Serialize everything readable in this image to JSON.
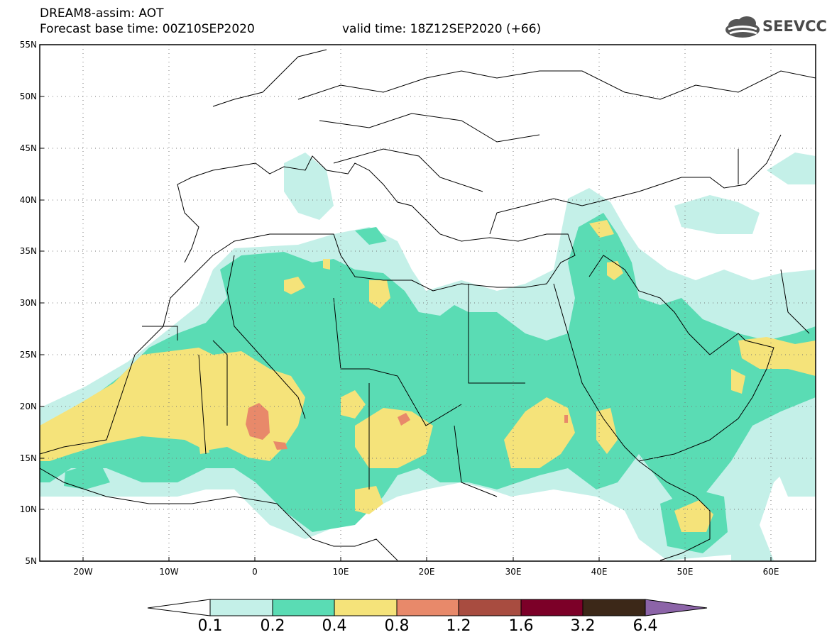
{
  "header": {
    "line1": "DREAM8-assim: AOT",
    "line2": "Forecast base time: 00Z10SEP2020",
    "line3": "valid time: 18Z12SEP2020 (+66)",
    "logo_text": "SEEVCCC"
  },
  "map": {
    "lat_labels": [
      "55N",
      "50N",
      "45N",
      "40N",
      "35N",
      "30N",
      "25N",
      "20N",
      "15N",
      "10N",
      "5N"
    ],
    "lon_labels": [
      "20W",
      "10W",
      "0",
      "10E",
      "20E",
      "30E",
      "40E",
      "50E",
      "60E"
    ],
    "lat_range": [
      5,
      55
    ],
    "lon_range": [
      -25,
      65
    ],
    "gridlines": "dotted"
  },
  "colorbar": {
    "levels": [
      "0.1",
      "0.2",
      "0.4",
      "0.8",
      "1.2",
      "1.6",
      "3.2",
      "6.4"
    ],
    "colors": [
      "#ffffff",
      "#c4f0e8",
      "#5adcb4",
      "#f5e37a",
      "#e8896a",
      "#a84c40",
      "#7c0028",
      "#3c2818",
      "#8c64a8"
    ]
  }
}
